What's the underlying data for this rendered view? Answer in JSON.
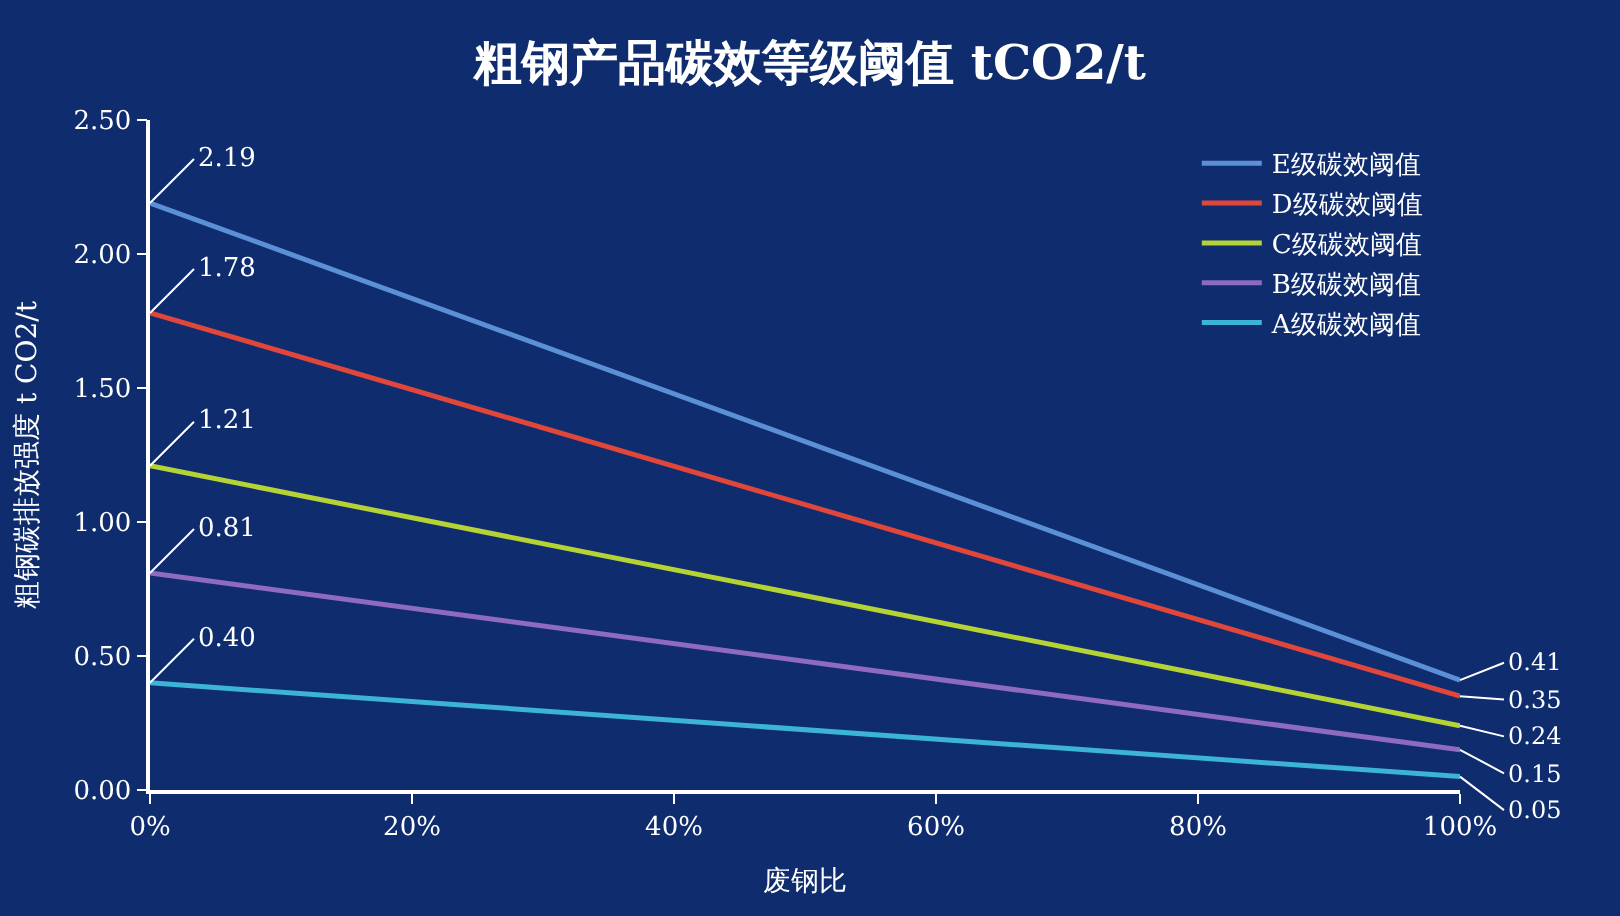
{
  "chart_data": {
    "type": "line",
    "title": "粗钢产品碳效等级阈值 tCO2/t",
    "xlabel": "废钢比",
    "ylabel": "粗钢碳排放强度 t CO2/t",
    "x": [
      0,
      100
    ],
    "series": [
      {
        "name": "E级碳效阈值",
        "color": "#5b8fd6",
        "values": [
          2.19,
          0.41
        ],
        "value_labels": [
          "2.19",
          "0.41"
        ]
      },
      {
        "name": "D级碳效阈值",
        "color": "#e0463a",
        "values": [
          1.78,
          0.35
        ],
        "value_labels": [
          "1.78",
          "0.35"
        ]
      },
      {
        "name": "C级碳效阈值",
        "color": "#b5d334",
        "values": [
          1.21,
          0.24
        ],
        "value_labels": [
          "1.21",
          "0.24"
        ]
      },
      {
        "name": "B级碳效阈值",
        "color": "#8e6bbf",
        "values": [
          0.81,
          0.15
        ],
        "value_labels": [
          "0.81",
          "0.15"
        ]
      },
      {
        "name": "A级碳效阈值",
        "color": "#3cb4d8",
        "values": [
          0.4,
          0.05
        ],
        "value_labels": [
          "0.40",
          "0.05"
        ]
      }
    ],
    "xlim": [
      0,
      100
    ],
    "xticks": [
      {
        "value": 0,
        "label": "0%"
      },
      {
        "value": 20,
        "label": "20%"
      },
      {
        "value": 40,
        "label": "40%"
      },
      {
        "value": 60,
        "label": "60%"
      },
      {
        "value": 80,
        "label": "80%"
      },
      {
        "value": 100,
        "label": "100%"
      }
    ],
    "ylim": [
      0,
      2.5
    ],
    "yticks": [
      {
        "value": 0,
        "label": "0.00"
      },
      {
        "value": 0.5,
        "label": "0.50"
      },
      {
        "value": 1,
        "label": "1.00"
      },
      {
        "value": 1.5,
        "label": "1.50"
      },
      {
        "value": 2,
        "label": "2.00"
      },
      {
        "value": 2.5,
        "label": "2.50"
      }
    ],
    "grid": false,
    "legend": "top right",
    "marker": "none",
    "line_style": "solid"
  }
}
